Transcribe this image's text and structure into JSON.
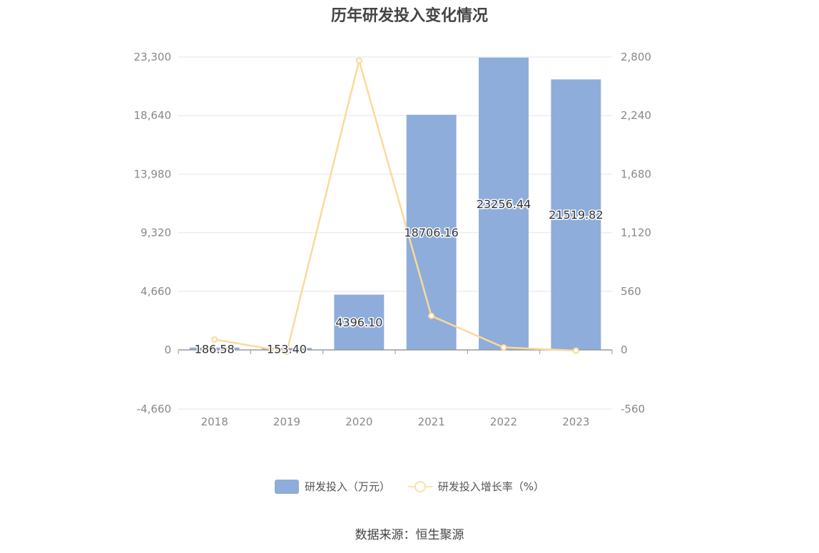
{
  "chart_data": {
    "type": "bar",
    "title": "历年研发投入变化情况",
    "categories": [
      "2018",
      "2019",
      "2020",
      "2021",
      "2022",
      "2023"
    ],
    "series": [
      {
        "name": "研发投入（万元）",
        "type": "bar",
        "axis": "left",
        "values": [
          186.58,
          153.4,
          4396.1,
          18706.16,
          23256.44,
          21519.82
        ],
        "labels": [
          "186.58",
          "153.40",
          "4396.10",
          "18706.16",
          "23256.44",
          "21519.82"
        ]
      },
      {
        "name": "研发投入增长率（%）",
        "type": "line",
        "axis": "right",
        "values": [
          100,
          -18,
          2766,
          325,
          24,
          -7
        ]
      }
    ],
    "y_left": {
      "ylim": [
        -4660,
        23300
      ],
      "ticks": [
        -4660,
        0,
        4660,
        9320,
        13980,
        18640,
        23300
      ],
      "tick_labels": [
        "-4,660",
        "0",
        "4,660",
        "9,320",
        "13,980",
        "18,640",
        "23,300"
      ]
    },
    "y_right": {
      "ylim": [
        -560,
        2800
      ],
      "ticks": [
        -560,
        0,
        560,
        1120,
        1680,
        2240,
        2800
      ],
      "tick_labels": [
        "-560",
        "0",
        "560",
        "1,120",
        "1,680",
        "2,240",
        "2,800"
      ]
    },
    "grid": true,
    "legend": "bottom",
    "colors": {
      "bar": "#8eadda",
      "line": "#fcd99a",
      "grid": "#e3e6ee",
      "axis_text": "#888888"
    }
  },
  "source": "数据来源：恒生聚源"
}
